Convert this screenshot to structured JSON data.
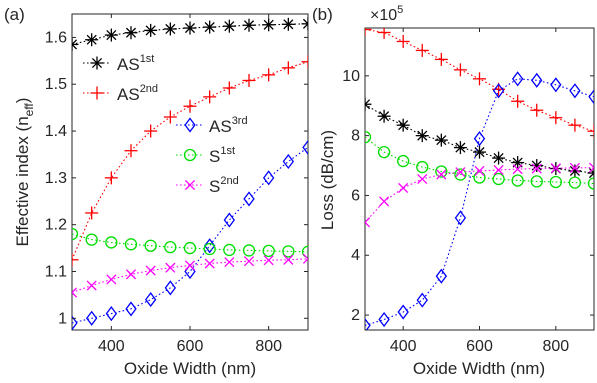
{
  "chart_data": [
    {
      "type": "line",
      "panel_label": "(a)",
      "xlabel": "Oxide Width (nm)",
      "ylabel_main": "Effective index (n",
      "ylabel_sub": "eff",
      "ylabel_close": ")",
      "xlim": [
        300,
        900
      ],
      "ylim": [
        0.975,
        1.65
      ],
      "xticks": [
        400,
        600,
        800
      ],
      "yticks": [
        1,
        1.1,
        1.2,
        1.3,
        1.4,
        1.5,
        1.6
      ],
      "x": [
        300,
        350,
        400,
        450,
        500,
        550,
        600,
        650,
        700,
        750,
        800,
        850,
        900
      ],
      "series": [
        {
          "name": "AS",
          "sup": "1st",
          "marker": "asterisk",
          "color": "#000000",
          "values": [
            1.585,
            1.595,
            1.605,
            1.61,
            1.615,
            1.618,
            1.62,
            1.622,
            1.624,
            1.626,
            1.627,
            1.628,
            1.629
          ]
        },
        {
          "name": "AS",
          "sup": "2nd",
          "marker": "plus",
          "color": "#ff0000",
          "values": [
            1.125,
            1.225,
            1.3,
            1.358,
            1.4,
            1.43,
            1.453,
            1.473,
            1.492,
            1.508,
            1.52,
            1.535,
            1.548
          ]
        },
        {
          "name": "AS",
          "sup": "3rd",
          "marker": "diamond",
          "color": "#0000ff",
          "values": [
            0.99,
            1.0,
            1.01,
            1.02,
            1.04,
            1.065,
            1.1,
            1.155,
            1.21,
            1.255,
            1.3,
            1.335,
            1.365
          ]
        },
        {
          "name": "S",
          "sup": "1st",
          "marker": "circle",
          "color": "#00dd00",
          "values": [
            1.18,
            1.168,
            1.162,
            1.158,
            1.155,
            1.152,
            1.15,
            1.148,
            1.146,
            1.145,
            1.144,
            1.143,
            1.142
          ]
        },
        {
          "name": "S",
          "sup": "2nd",
          "marker": "x",
          "color": "#ff00ff",
          "values": [
            1.055,
            1.07,
            1.083,
            1.094,
            1.102,
            1.108,
            1.113,
            1.117,
            1.12,
            1.122,
            1.124,
            1.125,
            1.127
          ]
        }
      ]
    },
    {
      "type": "line",
      "panel_label": "(b)",
      "xlabel": "Oxide Width (nm)",
      "ylabel": "Loss (dB/cm)",
      "y_multiplier_base": "×10",
      "y_multiplier_exp": "5",
      "xlim": [
        300,
        900
      ],
      "ylim": [
        1.5,
        11.6
      ],
      "xticks": [
        400,
        600,
        800
      ],
      "yticks": [
        2,
        4,
        6,
        8,
        10
      ],
      "x": [
        300,
        350,
        400,
        450,
        500,
        550,
        600,
        650,
        700,
        750,
        800,
        850,
        900
      ],
      "series": [
        {
          "name": "AS",
          "sup": "1st",
          "marker": "asterisk",
          "color": "#000000",
          "values": [
            9.05,
            8.65,
            8.35,
            8.0,
            7.85,
            7.6,
            7.45,
            7.25,
            7.1,
            7.0,
            6.9,
            6.82,
            6.75
          ]
        },
        {
          "name": "AS",
          "sup": "2nd",
          "marker": "plus",
          "color": "#ff0000",
          "values": [
            11.55,
            11.45,
            11.15,
            10.85,
            10.55,
            10.2,
            9.9,
            9.55,
            9.15,
            8.85,
            8.6,
            8.35,
            8.15
          ]
        },
        {
          "name": "AS",
          "sup": "3rd",
          "marker": "diamond",
          "color": "#0000ff",
          "values": [
            1.65,
            1.85,
            2.1,
            2.5,
            3.3,
            5.25,
            7.9,
            9.5,
            9.9,
            9.85,
            9.7,
            9.5,
            9.3
          ]
        },
        {
          "name": "S",
          "sup": "1st",
          "marker": "circle",
          "color": "#00dd00",
          "values": [
            7.95,
            7.45,
            7.15,
            6.95,
            6.8,
            6.7,
            6.6,
            6.55,
            6.5,
            6.47,
            6.45,
            6.43,
            6.4
          ]
        },
        {
          "name": "S",
          "sup": "2nd",
          "marker": "x",
          "color": "#ff00ff",
          "values": [
            5.1,
            5.8,
            6.25,
            6.55,
            6.7,
            6.78,
            6.82,
            6.85,
            6.88,
            6.9,
            6.91,
            6.92,
            6.93
          ]
        }
      ]
    }
  ]
}
